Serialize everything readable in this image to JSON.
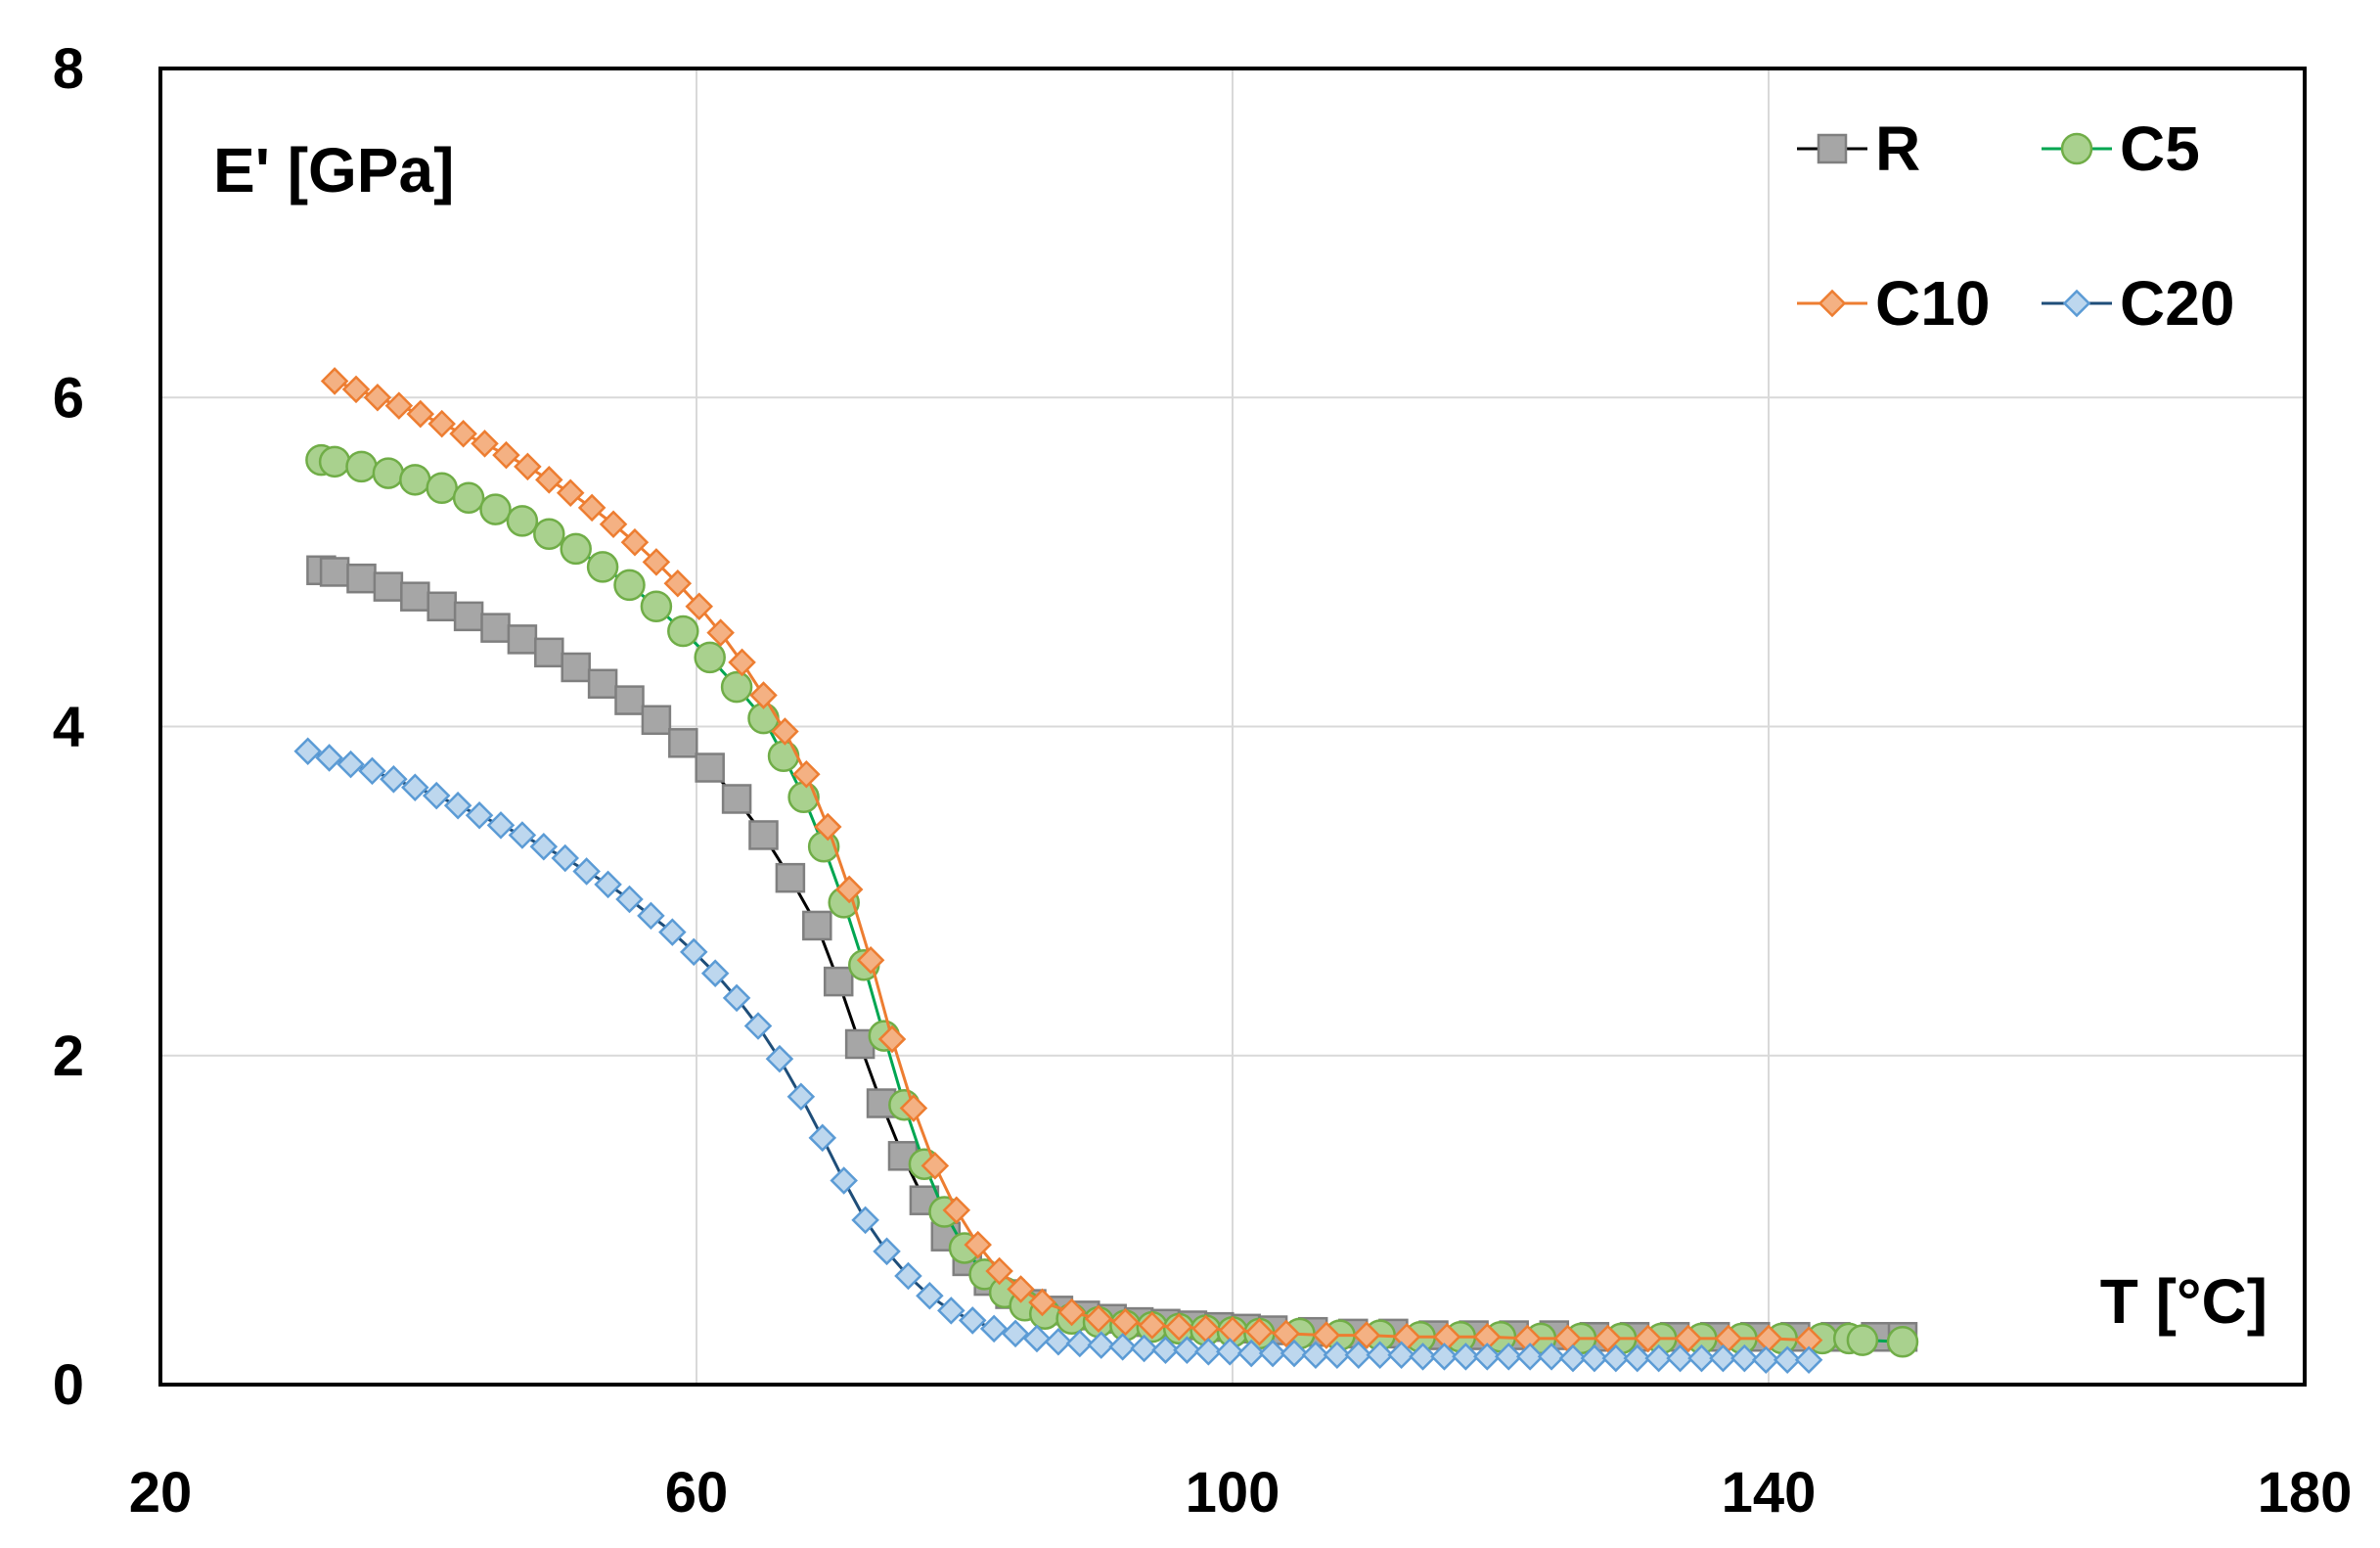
{
  "chart_data": {
    "type": "scatter",
    "title": "",
    "xlabel": "T [°C]",
    "ylabel": "E' [GPa]",
    "xlim": [
      20,
      180
    ],
    "ylim": [
      0,
      8
    ],
    "x_ticks": [
      "20",
      "60",
      "100",
      "140",
      "180"
    ],
    "y_ticks": [
      "0",
      "2",
      "4",
      "6",
      "8"
    ],
    "grid": true,
    "legend_position": "top-right",
    "series": [
      {
        "name": "R",
        "marker": "square",
        "line_color": "#000000",
        "fill": "#a6a6a6",
        "stroke": "#7f7f7f",
        "x": [
          32,
          33,
          35,
          37,
          39,
          41,
          43,
          45,
          47,
          49,
          51,
          53,
          55,
          57,
          59,
          61,
          63,
          65,
          67,
          69,
          70.6,
          72.2,
          73.8,
          75.4,
          77,
          78.6,
          80.2,
          81.8,
          83.4,
          85,
          87,
          89,
          91,
          93,
          95,
          97,
          99,
          101,
          103,
          106,
          109,
          112,
          115,
          118,
          121,
          124,
          127,
          130,
          133,
          136,
          139,
          142,
          145,
          148,
          150
        ],
        "values": [
          4.95,
          4.94,
          4.9,
          4.85,
          4.79,
          4.73,
          4.67,
          4.6,
          4.53,
          4.45,
          4.36,
          4.26,
          4.16,
          4.04,
          3.9,
          3.75,
          3.56,
          3.34,
          3.08,
          2.79,
          2.45,
          2.07,
          1.71,
          1.39,
          1.12,
          0.9,
          0.75,
          0.63,
          0.55,
          0.49,
          0.45,
          0.42,
          0.4,
          0.38,
          0.37,
          0.36,
          0.35,
          0.34,
          0.33,
          0.32,
          0.31,
          0.31,
          0.3,
          0.3,
          0.3,
          0.3,
          0.29,
          0.29,
          0.29,
          0.29,
          0.29,
          0.29,
          0.29,
          0.29,
          0.29
        ]
      },
      {
        "name": "C5",
        "marker": "circle",
        "line_color": "#00a651",
        "fill": "#a9d18e",
        "stroke": "#70ad47",
        "x": [
          32,
          33,
          35,
          37,
          39,
          41,
          43,
          45,
          47,
          49,
          51,
          53,
          55,
          57,
          59,
          61,
          63,
          65,
          66.5,
          68,
          69.5,
          71,
          72.5,
          74,
          75.5,
          77,
          78.5,
          80,
          81.5,
          83,
          84.5,
          86,
          88,
          90,
          92,
          94,
          96,
          98,
          100,
          102,
          105,
          108,
          111,
          114,
          117,
          120,
          123,
          126,
          129,
          132,
          135,
          138,
          141,
          144,
          146,
          147,
          150
        ],
        "values": [
          5.62,
          5.61,
          5.58,
          5.54,
          5.5,
          5.45,
          5.39,
          5.32,
          5.25,
          5.17,
          5.08,
          4.97,
          4.86,
          4.73,
          4.58,
          4.42,
          4.24,
          4.05,
          3.82,
          3.57,
          3.27,
          2.93,
          2.55,
          2.12,
          1.7,
          1.34,
          1.05,
          0.83,
          0.67,
          0.56,
          0.48,
          0.43,
          0.4,
          0.38,
          0.36,
          0.35,
          0.34,
          0.33,
          0.32,
          0.31,
          0.31,
          0.3,
          0.3,
          0.29,
          0.29,
          0.29,
          0.28,
          0.28,
          0.28,
          0.28,
          0.28,
          0.28,
          0.28,
          0.28,
          0.28,
          0.27,
          0.26
        ]
      },
      {
        "name": "C10",
        "marker": "diamond",
        "line_color": "#ed7d31",
        "fill": "#f4b183",
        "stroke": "#ed7d31",
        "x": [
          33,
          34.6,
          36.2,
          37.8,
          39.4,
          41,
          42.6,
          44.2,
          45.8,
          47.4,
          49,
          50.6,
          52.2,
          53.8,
          55.4,
          57,
          58.6,
          60.2,
          61.8,
          63.4,
          65,
          66.6,
          68.2,
          69.8,
          71.4,
          73,
          74.6,
          76.2,
          77.8,
          79.4,
          81,
          82.6,
          84.2,
          85.8,
          88,
          90,
          92,
          94,
          96,
          98,
          100,
          102,
          104,
          107,
          110,
          113,
          116,
          119,
          122,
          125,
          128,
          131,
          134,
          137,
          140,
          143
        ],
        "values": [
          6.1,
          6.05,
          6.0,
          5.95,
          5.9,
          5.84,
          5.78,
          5.72,
          5.65,
          5.58,
          5.5,
          5.42,
          5.33,
          5.23,
          5.12,
          5.0,
          4.87,
          4.73,
          4.57,
          4.39,
          4.19,
          3.97,
          3.71,
          3.39,
          3.01,
          2.58,
          2.1,
          1.68,
          1.33,
          1.06,
          0.85,
          0.69,
          0.58,
          0.5,
          0.44,
          0.4,
          0.38,
          0.36,
          0.35,
          0.34,
          0.33,
          0.32,
          0.31,
          0.3,
          0.3,
          0.29,
          0.29,
          0.29,
          0.28,
          0.28,
          0.28,
          0.28,
          0.28,
          0.28,
          0.28,
          0.27
        ]
      },
      {
        "name": "C20",
        "marker": "diamond",
        "line_color": "#1f4e79",
        "fill": "#bdd7ee",
        "stroke": "#5b9bd5",
        "x": [
          31,
          32.6,
          34.2,
          35.8,
          37.4,
          39,
          40.6,
          42.2,
          43.8,
          45.4,
          47,
          48.6,
          50.2,
          51.8,
          53.4,
          55,
          56.6,
          58.2,
          59.8,
          61.4,
          63,
          64.6,
          66.2,
          67.8,
          69.4,
          71,
          72.6,
          74.2,
          75.8,
          77.4,
          79,
          80.6,
          82.2,
          83.8,
          85.4,
          87,
          88.6,
          90.2,
          91.8,
          93.4,
          95,
          96.6,
          98.2,
          99.8,
          101.4,
          103,
          104.6,
          106.2,
          107.8,
          109.4,
          111,
          112.6,
          114.2,
          115.8,
          117.4,
          119,
          120.6,
          122.2,
          123.8,
          125.4,
          127,
          128.6,
          130.2,
          131.8,
          133.4,
          135,
          136.6,
          138.2,
          139.8,
          141.4,
          143
        ],
        "values": [
          3.85,
          3.81,
          3.77,
          3.73,
          3.68,
          3.63,
          3.58,
          3.52,
          3.46,
          3.4,
          3.34,
          3.27,
          3.2,
          3.12,
          3.04,
          2.95,
          2.85,
          2.75,
          2.63,
          2.5,
          2.35,
          2.18,
          1.98,
          1.75,
          1.5,
          1.24,
          1.0,
          0.81,
          0.66,
          0.54,
          0.45,
          0.39,
          0.34,
          0.31,
          0.28,
          0.26,
          0.25,
          0.24,
          0.23,
          0.22,
          0.21,
          0.21,
          0.2,
          0.2,
          0.19,
          0.19,
          0.19,
          0.18,
          0.18,
          0.18,
          0.18,
          0.18,
          0.17,
          0.17,
          0.17,
          0.17,
          0.17,
          0.17,
          0.17,
          0.16,
          0.16,
          0.16,
          0.16,
          0.16,
          0.16,
          0.16,
          0.16,
          0.16,
          0.15,
          0.15,
          0.15
        ]
      }
    ]
  }
}
